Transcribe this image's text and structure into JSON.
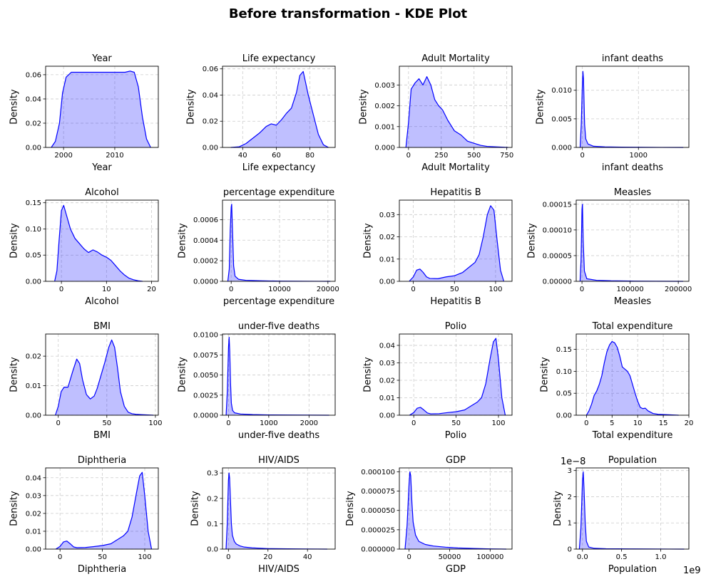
{
  "figure": {
    "title": "Before transformation - KDE Plot",
    "colors": {
      "line": "#0000ff",
      "fill": "#0000ff",
      "fill_opacity": 0.25,
      "grid": "#cccccc"
    }
  },
  "chart_data": [
    {
      "type": "area",
      "title": "Year",
      "xlabel": "Year",
      "ylabel": "Density",
      "xlim": [
        1996.5,
        2018.5
      ],
      "ylim": [
        0,
        0.067
      ],
      "xticks": [
        2000,
        2010
      ],
      "xtick_labels": [
        "2000",
        "2010"
      ],
      "yticks": [
        0,
        0.02,
        0.04,
        0.06
      ],
      "ytick_labels": [
        "0.00",
        "0.02",
        "0.04",
        "0.06"
      ],
      "grid": true,
      "x": [
        1997.6,
        1998.4,
        1999.2,
        1999.8,
        2000.5,
        2001.5,
        2003,
        2005,
        2008,
        2010,
        2012,
        2013,
        2013.8,
        2014.6,
        2015.4,
        2016.2,
        2017
      ],
      "y": [
        0.0,
        0.005,
        0.02,
        0.045,
        0.058,
        0.062,
        0.062,
        0.062,
        0.062,
        0.062,
        0.062,
        0.063,
        0.062,
        0.05,
        0.025,
        0.007,
        0.0
      ]
    },
    {
      "type": "area",
      "title": "Life expectancy",
      "xlabel": "Life expectancy",
      "ylabel": "Density",
      "xlim": [
        28,
        95
      ],
      "ylim": [
        0,
        0.062
      ],
      "xticks": [
        40,
        60,
        80
      ],
      "xtick_labels": [
        "40",
        "60",
        "80"
      ],
      "yticks": [
        0,
        0.02,
        0.04,
        0.06
      ],
      "ytick_labels": [
        "0.00",
        "0.02",
        "0.04",
        "0.06"
      ],
      "grid": true,
      "x": [
        33,
        38,
        42,
        46,
        50,
        54,
        57,
        60,
        63,
        66,
        69,
        72,
        74,
        76,
        77,
        79,
        82,
        85,
        88,
        91
      ],
      "y": [
        0.0,
        0.0005,
        0.003,
        0.007,
        0.011,
        0.016,
        0.018,
        0.017,
        0.021,
        0.026,
        0.03,
        0.042,
        0.055,
        0.058,
        0.052,
        0.04,
        0.025,
        0.01,
        0.002,
        0.0
      ]
    },
    {
      "type": "area",
      "title": "Adult Mortality",
      "xlabel": "Adult Mortality",
      "ylabel": "Density",
      "xlim": [
        -70,
        790
      ],
      "ylim": [
        0,
        0.0039
      ],
      "xticks": [
        0,
        250,
        500,
        750
      ],
      "xtick_labels": [
        "0",
        "250",
        "500",
        "750"
      ],
      "yticks": [
        0,
        0.001,
        0.002,
        0.003
      ],
      "ytick_labels": [
        "0.000",
        "0.001",
        "0.002",
        "0.003"
      ],
      "grid": true,
      "x": [
        -20,
        0,
        20,
        50,
        80,
        110,
        140,
        170,
        200,
        230,
        260,
        300,
        350,
        400,
        450,
        500,
        550,
        600,
        700,
        760
      ],
      "y": [
        0.0,
        0.0012,
        0.0028,
        0.0031,
        0.0033,
        0.003,
        0.0034,
        0.003,
        0.0023,
        0.002,
        0.0018,
        0.0013,
        0.0008,
        0.0006,
        0.0003,
        0.0002,
        0.0001,
        5e-05,
        2e-05,
        0.0
      ]
    },
    {
      "type": "area",
      "title": "infant deaths",
      "xlabel": "infant deaths",
      "ylabel": "Density",
      "xlim": [
        -110,
        1900
      ],
      "ylim": [
        0,
        0.0142
      ],
      "xticks": [
        0,
        1000
      ],
      "xtick_labels": [
        "0",
        "1000"
      ],
      "yticks": [
        0,
        0.005,
        0.01
      ],
      "ytick_labels": [
        "0.000",
        "0.005",
        "0.010"
      ],
      "grid": true,
      "x": [
        -40,
        -20,
        0,
        10,
        20,
        30,
        40,
        60,
        100,
        200,
        400,
        700,
        1000,
        1400,
        1800
      ],
      "y": [
        0.0,
        0.004,
        0.011,
        0.0133,
        0.012,
        0.008,
        0.004,
        0.0015,
        0.0006,
        0.0002,
        0.0001,
        5e-05,
        3e-05,
        1e-05,
        0.0
      ]
    },
    {
      "type": "area",
      "title": "Alcohol",
      "xlabel": "Alcohol",
      "ylabel": "Density",
      "xlim": [
        -3.5,
        21.5
      ],
      "ylim": [
        0,
        0.155
      ],
      "xticks": [
        0,
        10,
        20
      ],
      "xtick_labels": [
        "0",
        "10",
        "20"
      ],
      "yticks": [
        0,
        0.05,
        0.1,
        0.15
      ],
      "ytick_labels": [
        "0.00",
        "0.05",
        "0.10",
        "0.15"
      ],
      "grid": true,
      "x": [
        -1.5,
        -1,
        -0.5,
        0,
        0.5,
        1,
        2,
        3,
        4,
        5,
        6,
        7,
        8,
        9,
        10,
        11,
        12,
        13,
        14,
        15,
        16,
        17,
        18
      ],
      "y": [
        0.0,
        0.02,
        0.08,
        0.135,
        0.145,
        0.13,
        0.1,
        0.082,
        0.072,
        0.062,
        0.055,
        0.06,
        0.056,
        0.05,
        0.046,
        0.04,
        0.03,
        0.02,
        0.012,
        0.006,
        0.003,
        0.001,
        0.0
      ]
    },
    {
      "type": "area",
      "title": "percentage expenditure",
      "xlabel": "percentage expenditure",
      "ylabel": "Density",
      "xlim": [
        -1800,
        21500
      ],
      "ylim": [
        0,
        0.00079
      ],
      "xticks": [
        0,
        10000,
        20000
      ],
      "xtick_labels": [
        "0",
        "10000",
        "20000"
      ],
      "yticks": [
        0,
        0.0002,
        0.0004,
        0.0006
      ],
      "ytick_labels": [
        "0.0000",
        "0.0002",
        "0.0004",
        "0.0006"
      ],
      "grid": true,
      "x": [
        -700,
        -400,
        -200,
        0,
        100,
        300,
        500,
        800,
        1500,
        3000,
        6000,
        10000,
        14000,
        18000,
        20500
      ],
      "y": [
        0.0,
        0.00012,
        0.0005,
        0.00072,
        0.00075,
        0.00045,
        0.00015,
        5e-05,
        2e-05,
        1e-05,
        5e-06,
        2e-06,
        1e-06,
        5e-07,
        0.0
      ]
    },
    {
      "type": "area",
      "title": "Hepatitis B",
      "xlabel": "Hepatitis B",
      "ylabel": "Density",
      "xlim": [
        -17,
        120
      ],
      "ylim": [
        0,
        0.0365
      ],
      "xticks": [
        0,
        50,
        100
      ],
      "xtick_labels": [
        "0",
        "50",
        "100"
      ],
      "yticks": [
        0,
        0.01,
        0.02,
        0.03
      ],
      "ytick_labels": [
        "0.00",
        "0.01",
        "0.02",
        "0.03"
      ],
      "grid": true,
      "x": [
        -5,
        0,
        4,
        8,
        12,
        16,
        20,
        30,
        40,
        50,
        60,
        70,
        75,
        80,
        85,
        90,
        94,
        98,
        102,
        106,
        110
      ],
      "y": [
        0.0,
        0.002,
        0.005,
        0.0055,
        0.004,
        0.002,
        0.0013,
        0.0012,
        0.002,
        0.0025,
        0.004,
        0.007,
        0.0085,
        0.012,
        0.02,
        0.03,
        0.034,
        0.032,
        0.018,
        0.005,
        0.0
      ]
    },
    {
      "type": "area",
      "title": "Measles",
      "xlabel": "Measles",
      "ylabel": "Density",
      "xlim": [
        -12000,
        222000
      ],
      "ylim": [
        0,
        0.000158
      ],
      "xticks": [
        0,
        100000,
        200000
      ],
      "xtick_labels": [
        "0",
        "100000",
        "200000"
      ],
      "yticks": [
        0,
        5e-05,
        0.0001,
        0.00015
      ],
      "ytick_labels": [
        "0.00000",
        "0.00005",
        "0.00010",
        "0.00015"
      ],
      "grid": true,
      "x": [
        -4000,
        -2000,
        0,
        1000,
        2500,
        5000,
        10000,
        30000,
        60000,
        100000,
        150000,
        210000
      ],
      "y": [
        0.0,
        4e-05,
        0.00014,
        0.00015,
        8e-05,
        2e-05,
        5e-06,
        2e-06,
        1e-06,
        5e-07,
        2e-07,
        0.0
      ]
    },
    {
      "type": "area",
      "title": "BMI",
      "xlabel": "BMI",
      "ylabel": "Density",
      "xlim": [
        -13,
        103
      ],
      "ylim": [
        0,
        0.0275
      ],
      "xticks": [
        0,
        50,
        100
      ],
      "xtick_labels": [
        "0",
        "50",
        "100"
      ],
      "yticks": [
        0,
        0.01,
        0.02
      ],
      "ytick_labels": [
        "0.00",
        "0.01",
        "0.02"
      ],
      "grid": true,
      "x": [
        -3,
        0,
        3,
        6,
        10,
        15,
        19,
        22,
        25,
        29,
        33,
        37,
        40,
        44,
        48,
        52,
        55,
        58,
        61,
        64,
        68,
        72,
        76,
        80,
        86,
        92,
        98
      ],
      "y": [
        0.0,
        0.003,
        0.008,
        0.0095,
        0.0095,
        0.015,
        0.019,
        0.0175,
        0.012,
        0.007,
        0.0055,
        0.0065,
        0.009,
        0.0135,
        0.018,
        0.023,
        0.0255,
        0.023,
        0.016,
        0.008,
        0.003,
        0.001,
        0.0005,
        0.0003,
        0.0002,
        0.0001,
        0.0
      ]
    },
    {
      "type": "area",
      "title": "under-five deaths",
      "xlabel": "under-five deaths",
      "ylabel": "Density",
      "xlim": [
        -150,
        2650
      ],
      "ylim": [
        0,
        0.0101
      ],
      "xticks": [
        0,
        1000,
        2000
      ],
      "xtick_labels": [
        "0",
        "1000",
        "2000"
      ],
      "yticks": [
        0,
        0.0025,
        0.005,
        0.0075,
        0.01
      ],
      "ytick_labels": [
        "0.0000",
        "0.0025",
        "0.0050",
        "0.0075",
        "0.0100"
      ],
      "grid": true,
      "x": [
        -60,
        -30,
        0,
        15,
        30,
        50,
        70,
        100,
        150,
        300,
        600,
        1000,
        1500,
        2000,
        2500
      ],
      "y": [
        0.0,
        0.003,
        0.0085,
        0.0097,
        0.008,
        0.004,
        0.0015,
        0.0006,
        0.0003,
        0.00015,
        8e-05,
        4e-05,
        2e-05,
        1e-05,
        0.0
      ]
    },
    {
      "type": "area",
      "title": "Polio",
      "xlabel": "Polio",
      "ylabel": "Density",
      "xlim": [
        -17,
        116
      ],
      "ylim": [
        0,
        0.0465
      ],
      "xticks": [
        0,
        50,
        100
      ],
      "xtick_labels": [
        "0",
        "50",
        "100"
      ],
      "yticks": [
        0,
        0.01,
        0.02,
        0.03,
        0.04
      ],
      "ytick_labels": [
        "0.00",
        "0.01",
        "0.02",
        "0.03",
        "0.04"
      ],
      "grid": true,
      "x": [
        -5,
        0,
        4,
        8,
        12,
        16,
        20,
        30,
        40,
        50,
        60,
        70,
        75,
        80,
        85,
        90,
        94,
        97,
        100,
        104,
        108
      ],
      "y": [
        0.0,
        0.0015,
        0.004,
        0.0045,
        0.003,
        0.0013,
        0.0008,
        0.0009,
        0.0015,
        0.002,
        0.003,
        0.006,
        0.0075,
        0.01,
        0.018,
        0.032,
        0.042,
        0.044,
        0.032,
        0.01,
        0.0
      ]
    },
    {
      "type": "area",
      "title": "Total expenditure",
      "xlabel": "Total expenditure",
      "ylabel": "Density",
      "xlim": [
        -2,
        20
      ],
      "ylim": [
        0,
        0.185
      ],
      "xticks": [
        0,
        5,
        10,
        15,
        20
      ],
      "xtick_labels": [
        "0",
        "5",
        "10",
        "15",
        "20"
      ],
      "yticks": [
        0,
        0.05,
        0.1,
        0.15
      ],
      "ytick_labels": [
        "0.00",
        "0.05",
        "0.10",
        "0.15"
      ],
      "grid": true,
      "x": [
        0,
        0.5,
        1,
        1.5,
        2,
        2.5,
        3,
        3.5,
        4,
        4.5,
        5,
        5.5,
        6,
        6.5,
        7,
        7.5,
        8,
        8.5,
        9,
        9.5,
        10,
        10.5,
        11,
        11.5,
        12,
        13,
        14,
        16,
        18
      ],
      "y": [
        0.0,
        0.01,
        0.025,
        0.045,
        0.055,
        0.07,
        0.09,
        0.12,
        0.145,
        0.16,
        0.168,
        0.165,
        0.155,
        0.135,
        0.11,
        0.105,
        0.1,
        0.09,
        0.07,
        0.05,
        0.032,
        0.018,
        0.015,
        0.016,
        0.01,
        0.004,
        0.002,
        0.001,
        0.0
      ]
    },
    {
      "type": "area",
      "title": "Diphtheria",
      "xlabel": "Diphtheria",
      "ylabel": "Density",
      "xlim": [
        -17,
        116
      ],
      "ylim": [
        0,
        0.0455
      ],
      "xticks": [
        0,
        50,
        100
      ],
      "xtick_labels": [
        "0",
        "50",
        "100"
      ],
      "yticks": [
        0,
        0.01,
        0.02,
        0.03,
        0.04
      ],
      "ytick_labels": [
        "0.00",
        "0.01",
        "0.02",
        "0.03",
        "0.04"
      ],
      "grid": true,
      "x": [
        -5,
        0,
        4,
        8,
        12,
        16,
        20,
        30,
        40,
        50,
        60,
        70,
        75,
        80,
        85,
        90,
        94,
        97,
        100,
        104,
        108
      ],
      "y": [
        0.0,
        0.0015,
        0.004,
        0.0045,
        0.003,
        0.0012,
        0.0008,
        0.0009,
        0.0014,
        0.002,
        0.003,
        0.006,
        0.0075,
        0.01,
        0.018,
        0.031,
        0.041,
        0.043,
        0.03,
        0.01,
        0.0
      ]
    },
    {
      "type": "area",
      "title": "HIV/AIDS",
      "xlabel": "HIV/AIDS",
      "ylabel": "Density",
      "xlim": [
        -3,
        54
      ],
      "ylim": [
        0,
        0.32
      ],
      "xticks": [
        0,
        20,
        40
      ],
      "xtick_labels": [
        "0",
        "20",
        "40"
      ],
      "yticks": [
        0,
        0.1,
        0.2,
        0.3
      ],
      "ytick_labels": [
        "0.0",
        "0.1",
        "0.2",
        "0.3"
      ],
      "grid": true,
      "x": [
        -1.2,
        -0.6,
        0,
        0.3,
        0.6,
        1,
        1.5,
        2,
        3,
        4,
        6,
        8,
        12,
        20,
        30,
        40,
        50
      ],
      "y": [
        0.0,
        0.1,
        0.27,
        0.3,
        0.28,
        0.2,
        0.1,
        0.055,
        0.03,
        0.02,
        0.012,
        0.008,
        0.005,
        0.002,
        0.001,
        0.0005,
        0.0
      ]
    },
    {
      "type": "area",
      "title": "GDP",
      "xlabel": "GDP",
      "ylabel": "Density",
      "xlim": [
        -12000,
        127000
      ],
      "ylim": [
        0,
        0.000105
      ],
      "xticks": [
        0,
        50000,
        100000
      ],
      "xtick_labels": [
        "0",
        "50000",
        "100000"
      ],
      "yticks": [
        0,
        2.5e-05,
        5e-05,
        7.5e-05,
        0.0001
      ],
      "ytick_labels": [
        "0.000000",
        "0.000025",
        "0.000050",
        "0.000075",
        "0.000100"
      ],
      "grid": true,
      "x": [
        -5000,
        -2500,
        0,
        1000,
        2000,
        3500,
        5000,
        8000,
        12000,
        20000,
        30000,
        45000,
        60000,
        80000,
        100000,
        120000
      ],
      "y": [
        0.0,
        3e-05,
        8.5e-05,
        0.0001,
        9.5e-05,
        6e-05,
        3.5e-05,
        1.8e-05,
        1e-05,
        6e-06,
        4e-06,
        2.5e-06,
        1.5e-06,
        8e-07,
        3e-07,
        0.0
      ]
    },
    {
      "type": "area",
      "title": "Population",
      "xlabel": "Population",
      "ylabel": "Density",
      "offset_top": "1e−8",
      "offset_bottom": "1e9",
      "xlim": [
        -0.08,
        1.36
      ],
      "ylim": [
        0,
        3.1
      ],
      "xticks": [
        0,
        0.5,
        1.0
      ],
      "xtick_labels": [
        "0.0",
        "0.5",
        "1.0"
      ],
      "yticks": [
        0,
        1,
        2,
        3
      ],
      "ytick_labels": [
        "0",
        "1",
        "2",
        "3"
      ],
      "grid": true,
      "x": [
        -0.04,
        -0.02,
        0,
        0.01,
        0.02,
        0.035,
        0.05,
        0.08,
        0.15,
        0.3,
        0.6,
        0.9,
        1.1,
        1.3
      ],
      "y": [
        0.0,
        0.8,
        2.6,
        2.95,
        2.3,
        1.0,
        0.3,
        0.08,
        0.03,
        0.015,
        0.008,
        0.004,
        0.002,
        0.0
      ]
    }
  ]
}
